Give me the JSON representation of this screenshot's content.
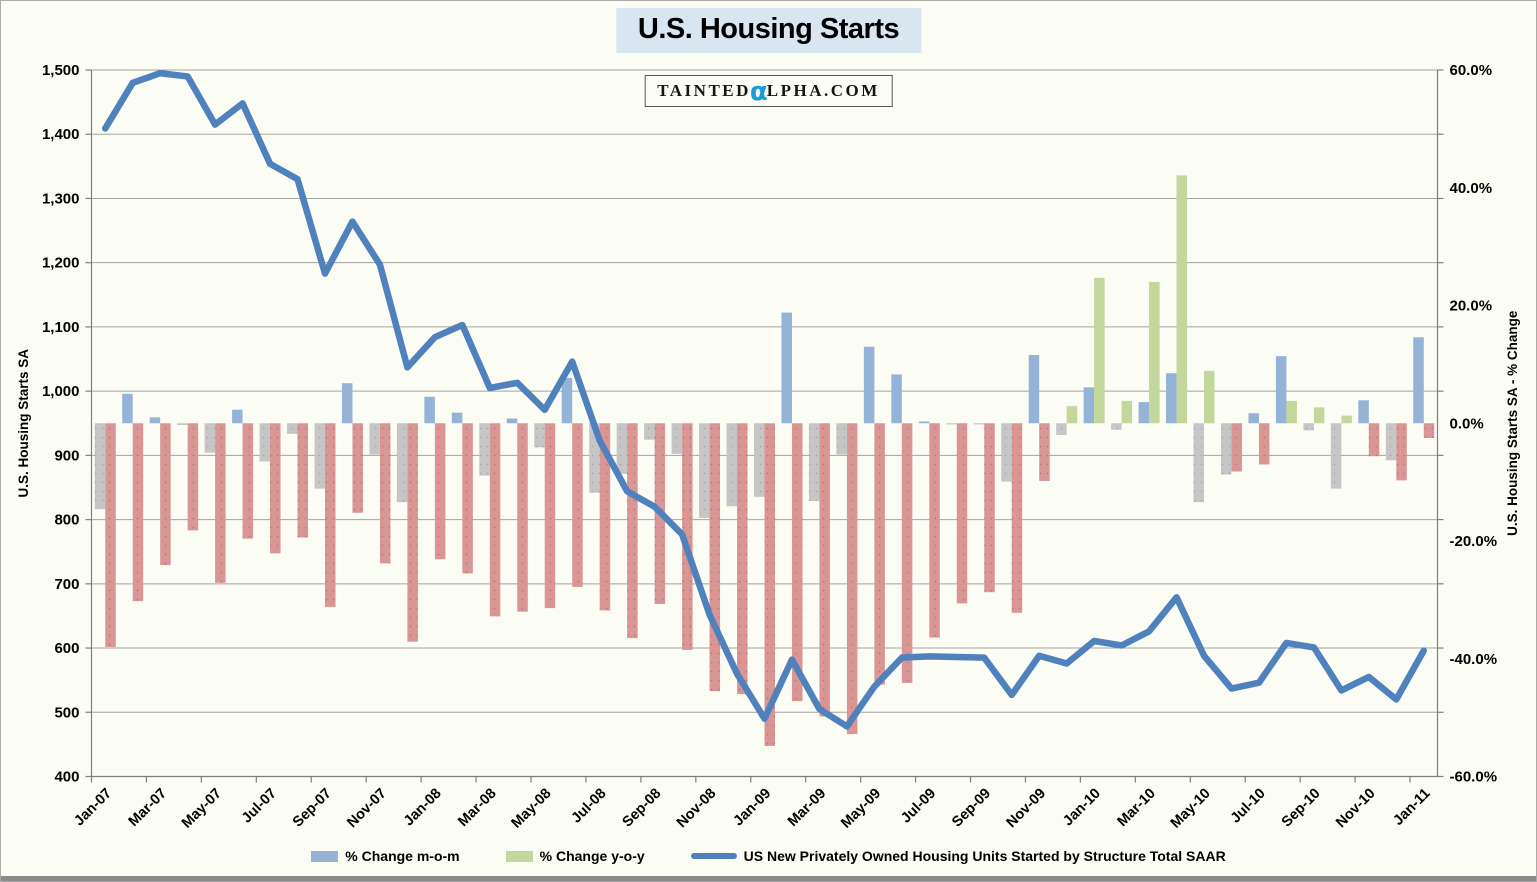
{
  "title": "U.S. Housing Starts",
  "logo": {
    "before": "TAINTED",
    "alpha": "α",
    "after": "LPHA.COM"
  },
  "colors": {
    "title_bg": "#d9e5f1",
    "alpha_blue": "#1b9bd8",
    "mom_positive": "#95b3d7",
    "mom_negative": "#c6c6c6",
    "yoy_positive": "#c3d69b",
    "yoy_negative": "#d99694",
    "line": "#4f81bd",
    "gridline": "#a3a3a3",
    "axis_line": "#7f7f7f",
    "text": "#000000"
  },
  "legend": {
    "items": [
      {
        "label": "% Change m-o-m",
        "swatch": "bar",
        "color_key": "mom_positive"
      },
      {
        "label": "% Change y-o-y",
        "swatch": "bar",
        "color_key": "yoy_positive"
      },
      {
        "label": "US New Privately Owned Housing Units Started by Structure Total SAAR",
        "swatch": "line",
        "color_key": "line"
      }
    ]
  },
  "chart_data": {
    "type": "combo (bars + line)",
    "categories": [
      "Jan-07",
      "Feb-07",
      "Mar-07",
      "Apr-07",
      "May-07",
      "Jun-07",
      "Jul-07",
      "Aug-07",
      "Sep-07",
      "Oct-07",
      "Nov-07",
      "Dec-07",
      "Jan-08",
      "Feb-08",
      "Mar-08",
      "Apr-08",
      "May-08",
      "Jun-08",
      "Jul-08",
      "Aug-08",
      "Sep-08",
      "Oct-08",
      "Nov-08",
      "Dec-08",
      "Jan-09",
      "Feb-09",
      "Mar-09",
      "Apr-09",
      "May-09",
      "Jun-09",
      "Jul-09",
      "Aug-09",
      "Sep-09",
      "Oct-09",
      "Nov-09",
      "Dec-09",
      "Jan-10",
      "Feb-10",
      "Mar-10",
      "Apr-10",
      "May-10",
      "Jun-10",
      "Jul-10",
      "Aug-10",
      "Sep-10",
      "Oct-10",
      "Nov-10",
      "Dec-10",
      "Jan-11"
    ],
    "series": [
      {
        "name": "% Change m-o-m",
        "type": "bar",
        "axis": "right",
        "unit": "%",
        "values": [
          -14.6,
          5.0,
          1.0,
          -0.3,
          -5.0,
          2.3,
          -6.5,
          -1.8,
          -11.1,
          6.8,
          -5.3,
          -13.4,
          4.5,
          1.8,
          -8.9,
          0.8,
          -4.1,
          7.7,
          -11.8,
          -8.6,
          -2.8,
          -5.2,
          -16.1,
          -14.1,
          -12.5,
          18.8,
          -13.2,
          -5.3,
          13.0,
          8.3,
          0.3,
          -0.2,
          -0.2,
          -9.9,
          11.6,
          -2.0,
          6.1,
          -1.1,
          3.6,
          8.5,
          -13.4,
          -8.7,
          1.7,
          11.4,
          -1.2,
          -11.1,
          3.9,
          -6.3,
          14.6
        ]
      },
      {
        "name": "% Change y-o-y",
        "type": "bar",
        "axis": "right",
        "unit": "%",
        "values": [
          -38.0,
          -30.2,
          -24.1,
          -18.2,
          -27.1,
          -19.6,
          -22.1,
          -19.4,
          -31.2,
          -15.2,
          -23.8,
          -37.1,
          -23.1,
          -25.5,
          -32.8,
          -32.0,
          -31.4,
          -27.8,
          -31.8,
          -36.5,
          -30.7,
          -38.5,
          -45.5,
          -46.0,
          -54.8,
          -47.2,
          -49.8,
          -52.8,
          -44.4,
          -44.1,
          -36.4,
          -30.6,
          -28.7,
          -32.2,
          -9.8,
          2.9,
          24.7,
          3.8,
          24.0,
          42.1,
          8.9,
          -8.2,
          -7.0,
          3.8,
          2.7,
          1.3,
          -5.6,
          -9.7,
          -2.5
        ]
      },
      {
        "name": "US New Privately Owned Housing Units Started by Structure Total SAAR",
        "type": "line",
        "axis": "left",
        "unit": "thousands SAAR",
        "values": [
          1409,
          1480,
          1495,
          1490,
          1415,
          1448,
          1354,
          1330,
          1183,
          1264,
          1197,
          1037,
          1084,
          1103,
          1005,
          1013,
          971,
          1046,
          923,
          844,
          820,
          777,
          652,
          560,
          490,
          582,
          505,
          478,
          540,
          585,
          587,
          586,
          585,
          527,
          588,
          576,
          611,
          604,
          626,
          679,
          588,
          537,
          546,
          608,
          601,
          534,
          555,
          520,
          596
        ]
      }
    ],
    "left_axis": {
      "title": "U.S. Housing Starts SA",
      "min": 400,
      "max": 1500,
      "step": 100,
      "tick_labels": [
        "1,500",
        "1,400",
        "1,300",
        "1,200",
        "1,100",
        "1,000",
        "900",
        "800",
        "700",
        "600",
        "500",
        "400"
      ]
    },
    "right_axis": {
      "title": "U.S. Housing Starts SA - % Change",
      "min": -60,
      "max": 60,
      "step": 20,
      "tick_labels": [
        "60.0%",
        "40.0%",
        "20.0%",
        "0.0%",
        "-20.0%",
        "-40.0%",
        "-60.0%"
      ]
    },
    "x_axis": {
      "tick_labels": [
        "Jan-07",
        "Mar-07",
        "May-07",
        "Jul-07",
        "Sep-07",
        "Nov-07",
        "Jan-08",
        "Mar-08",
        "May-08",
        "Jul-08",
        "Sep-08",
        "Nov-08",
        "Jan-09",
        "Mar-09",
        "May-09",
        "Jul-09",
        "Sep-09",
        "Nov-09",
        "Jan-10",
        "Mar-10",
        "May-10",
        "Jul-10",
        "Sep-10",
        "Nov-10",
        "Jan-11"
      ],
      "label_every_n_months": 2
    },
    "grid": true,
    "legend_position": "bottom"
  }
}
